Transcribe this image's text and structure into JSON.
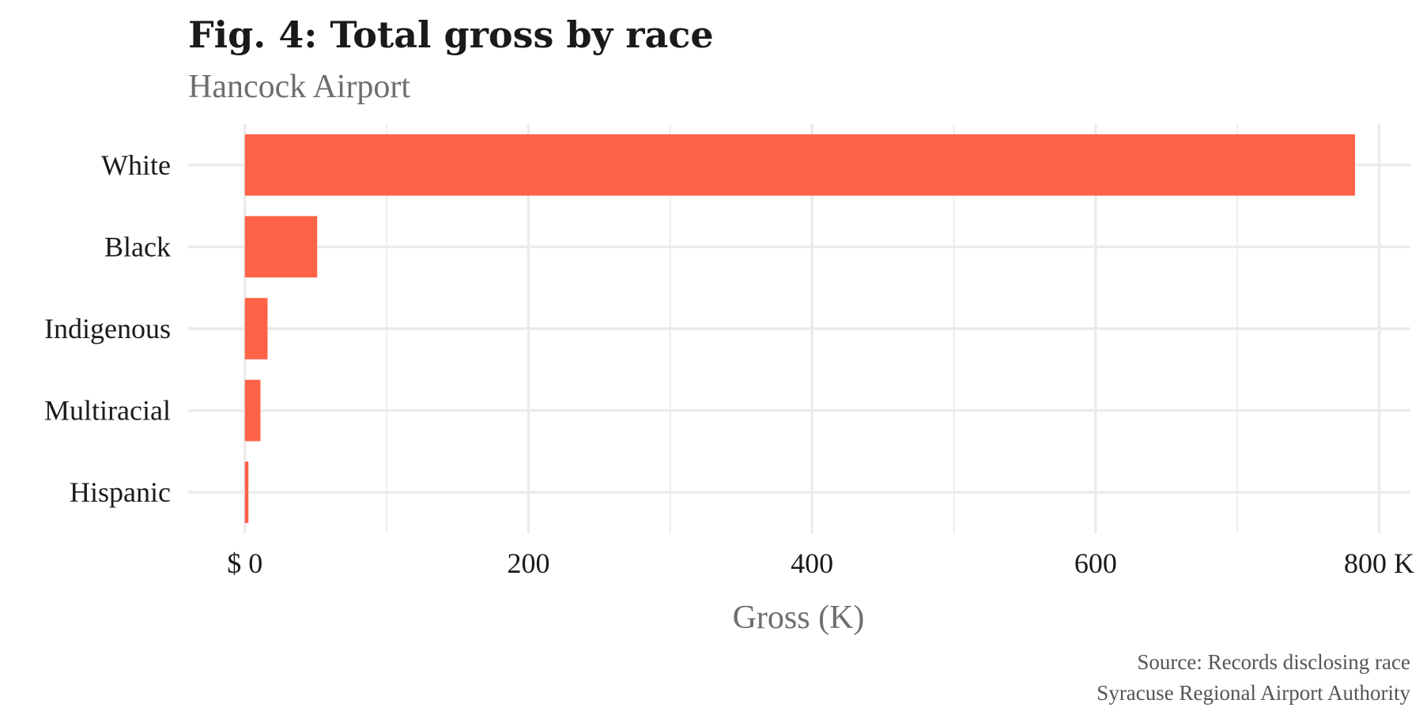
{
  "title": "Fig. 4: Total gross by race",
  "subtitle": "Hancock Airport",
  "caption": {
    "line1": "Source: Records disclosing race",
    "line2": "Syracuse Regional Airport Authority"
  },
  "colors": {
    "bar": "#ff6347",
    "grid": "#ebebeb",
    "title": "#1a1a1a",
    "muted": "#6e6e6e"
  },
  "chart_data": {
    "type": "bar",
    "orientation": "horizontal",
    "title": "Fig. 4: Total gross by race",
    "subtitle": "Hancock Airport",
    "categories": [
      "White",
      "Black",
      "Indigenous",
      "Multiracial",
      "Hispanic"
    ],
    "values": [
      783,
      51,
      16,
      11,
      2.5
    ],
    "value_unit": "K",
    "xlabel": "Gross (K)",
    "ylabel": "",
    "xlim": [
      -40,
      822
    ],
    "x_ticks": [
      0,
      200,
      400,
      600,
      800
    ],
    "x_tick_labels": [
      "$ 0",
      "200",
      "400",
      "600",
      "800 K"
    ],
    "x_minor_ticks": [
      100,
      300,
      500,
      700
    ],
    "grid": true,
    "legend": "none",
    "caption": "Source: Records disclosing race\nSyracuse Regional Airport Authority"
  }
}
